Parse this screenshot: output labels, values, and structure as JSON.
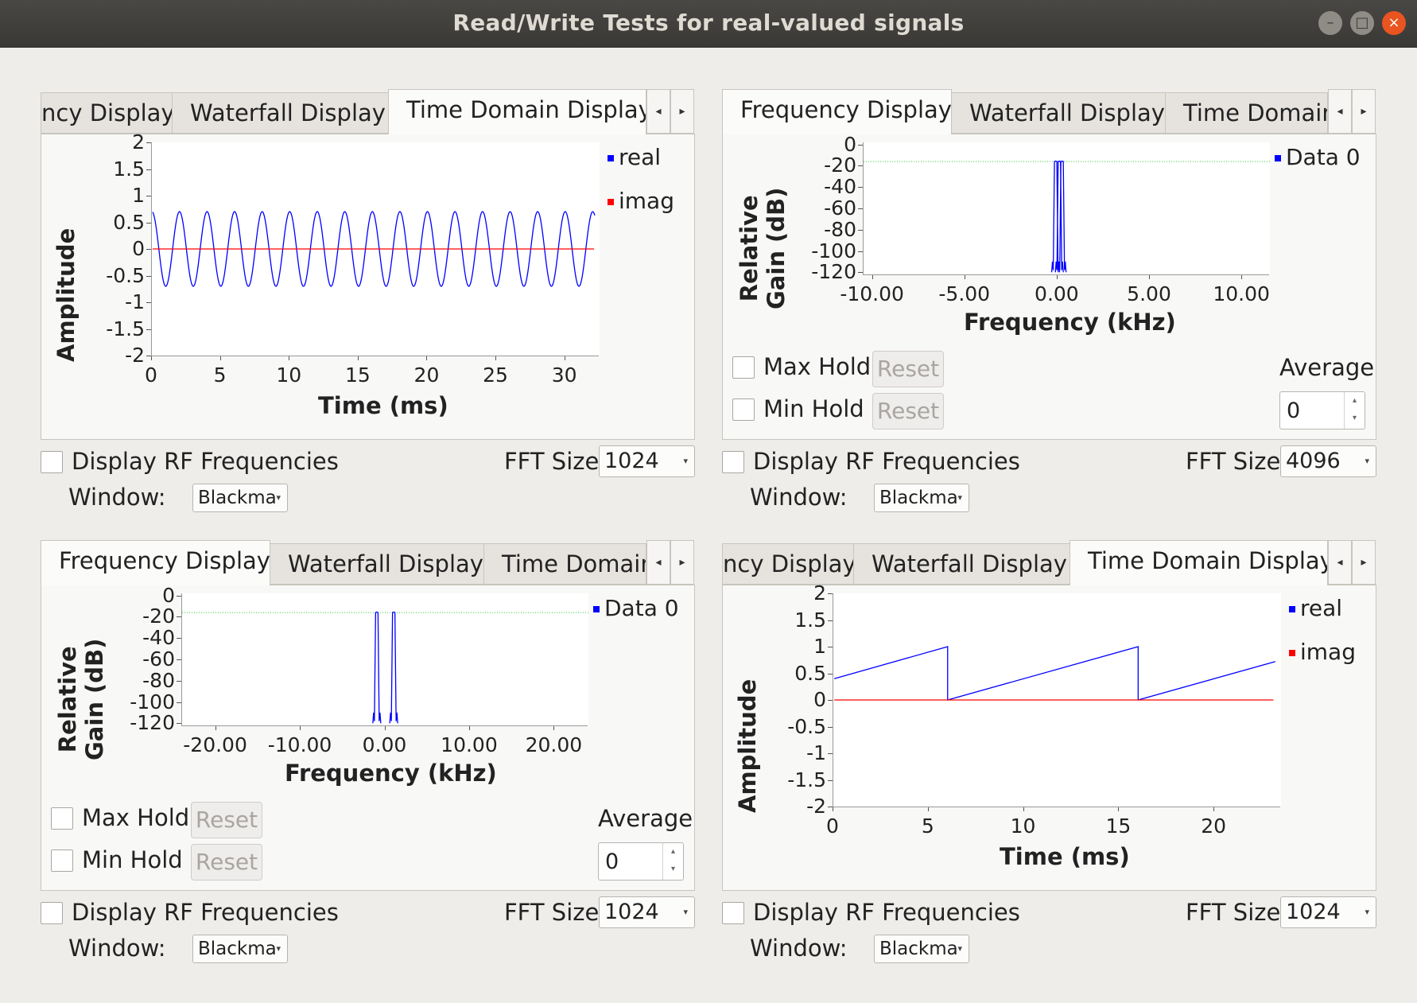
{
  "window": {
    "title": "Read/Write Tests for real-valued signals",
    "buttons": {
      "minimize": "–",
      "maximize": "□",
      "close": "×"
    }
  },
  "common": {
    "tab_scroll_left": "◂",
    "tab_scroll_right": "▸",
    "display_rf": "Display RF Frequencies",
    "fft_size_label": "FFT Size:",
    "window_label": "Window:",
    "window_value": "Blackma",
    "max_hold": "Max Hold",
    "min_hold": "Min Hold",
    "reset": "Reset",
    "average": "Average",
    "average_value": "0",
    "spin_up": "▴",
    "spin_down": "▾",
    "dropdown_arrow": "▾"
  },
  "panels": {
    "top_left": {
      "tabs": [
        "ncy Display",
        "Waterfall Display",
        "Time Domain Display"
      ],
      "active_tab": 2,
      "fft_size": "1024",
      "plot": {
        "ylabel": "Amplitude",
        "xlabel": "Time (ms)",
        "yticks": [
          "2",
          "1.5",
          "1",
          "0.5",
          "0",
          "-0.5",
          "-1",
          "-1.5",
          "-2"
        ],
        "xticks": [
          "0",
          "5",
          "10",
          "15",
          "20",
          "25",
          "30"
        ],
        "legend": [
          {
            "name": "real",
            "color": "#0000ff"
          },
          {
            "name": "imag",
            "color": "#ff0000"
          }
        ]
      }
    },
    "top_right": {
      "tabs": [
        "Frequency Display",
        "Waterfall Display",
        "Time Domain"
      ],
      "active_tab": 0,
      "fft_size": "4096",
      "plot": {
        "ylabel": "Relative Gain (dB)",
        "ylabel_line1": "Relative",
        "ylabel_line2": "Gain (dB)",
        "xlabel": "Frequency (kHz)",
        "yticks": [
          "0",
          "-20",
          "-40",
          "-60",
          "-80",
          "-100",
          "-120"
        ],
        "xticks": [
          "-10.00",
          "-5.00",
          "0.00",
          "5.00",
          "10.00"
        ],
        "legend": [
          {
            "name": "Data 0",
            "color": "#0000ff"
          }
        ]
      }
    },
    "bottom_left": {
      "tabs": [
        "Frequency Display",
        "Waterfall Display",
        "Time Domain"
      ],
      "active_tab": 0,
      "fft_size": "1024",
      "plot": {
        "ylabel_line1": "Relative",
        "ylabel_line2": "Gain (dB)",
        "xlabel": "Frequency (kHz)",
        "yticks": [
          "0",
          "-20",
          "-40",
          "-60",
          "-80",
          "-100",
          "-120"
        ],
        "xticks": [
          "-20.00",
          "-10.00",
          "0.00",
          "10.00",
          "20.00"
        ],
        "legend": [
          {
            "name": "Data 0",
            "color": "#0000ff"
          }
        ]
      }
    },
    "bottom_right": {
      "tabs": [
        "ncy Display",
        "Waterfall Display",
        "Time Domain Display"
      ],
      "active_tab": 2,
      "fft_size": "1024",
      "plot": {
        "ylabel": "Amplitude",
        "xlabel": "Time (ms)",
        "yticks": [
          "2",
          "1.5",
          "1",
          "0.5",
          "0",
          "-0.5",
          "-1",
          "-1.5",
          "-2"
        ],
        "xticks": [
          "0",
          "5",
          "10",
          "15",
          "20"
        ],
        "legend": [
          {
            "name": "real",
            "color": "#0000ff"
          },
          {
            "name": "imag",
            "color": "#ff0000"
          }
        ]
      }
    }
  },
  "chart_data": [
    {
      "type": "line",
      "panel": "top_left",
      "xlabel": "Time (ms)",
      "ylabel": "Amplitude",
      "xlim": [
        0,
        32.5
      ],
      "ylim": [
        -2,
        2
      ],
      "series": [
        {
          "name": "real",
          "shape": "sine",
          "amplitude": 0.7,
          "period_ms": 2.0,
          "color": "#0000ff"
        },
        {
          "name": "imag",
          "shape": "constant",
          "value": 0,
          "color": "#ff0000"
        }
      ]
    },
    {
      "type": "line",
      "panel": "top_right",
      "xlabel": "Frequency (kHz)",
      "ylabel": "Relative Gain (dB)",
      "xlim": [
        -10.5,
        11.5
      ],
      "ylim": [
        -122,
        2
      ],
      "reference_level_db": -16,
      "series": [
        {
          "name": "Data 0",
          "peaks_khz": [
            -0.1,
            0.1,
            0.25
          ],
          "peak_db": -16,
          "floor_db": -120,
          "color": "#0000ff"
        }
      ]
    },
    {
      "type": "line",
      "panel": "bottom_left",
      "xlabel": "Frequency (kHz)",
      "ylabel": "Relative Gain (dB)",
      "xlim": [
        -24,
        24
      ],
      "ylim": [
        -122,
        2
      ],
      "reference_level_db": -16,
      "series": [
        {
          "name": "Data 0",
          "peaks_khz": [
            -1.0,
            1.0
          ],
          "peak_db": -16,
          "floor_db": -120,
          "color": "#0000ff"
        }
      ]
    },
    {
      "type": "line",
      "panel": "bottom_right",
      "xlabel": "Time (ms)",
      "ylabel": "Amplitude",
      "xlim": [
        0,
        23.5
      ],
      "ylim": [
        -2,
        2
      ],
      "series": [
        {
          "name": "real",
          "shape": "sawtooth",
          "period_ms": 10,
          "phase_ms": 4.0,
          "min": 0,
          "max": 1,
          "color": "#0000ff"
        },
        {
          "name": "imag",
          "shape": "constant",
          "value": 0,
          "color": "#ff0000"
        }
      ]
    }
  ]
}
